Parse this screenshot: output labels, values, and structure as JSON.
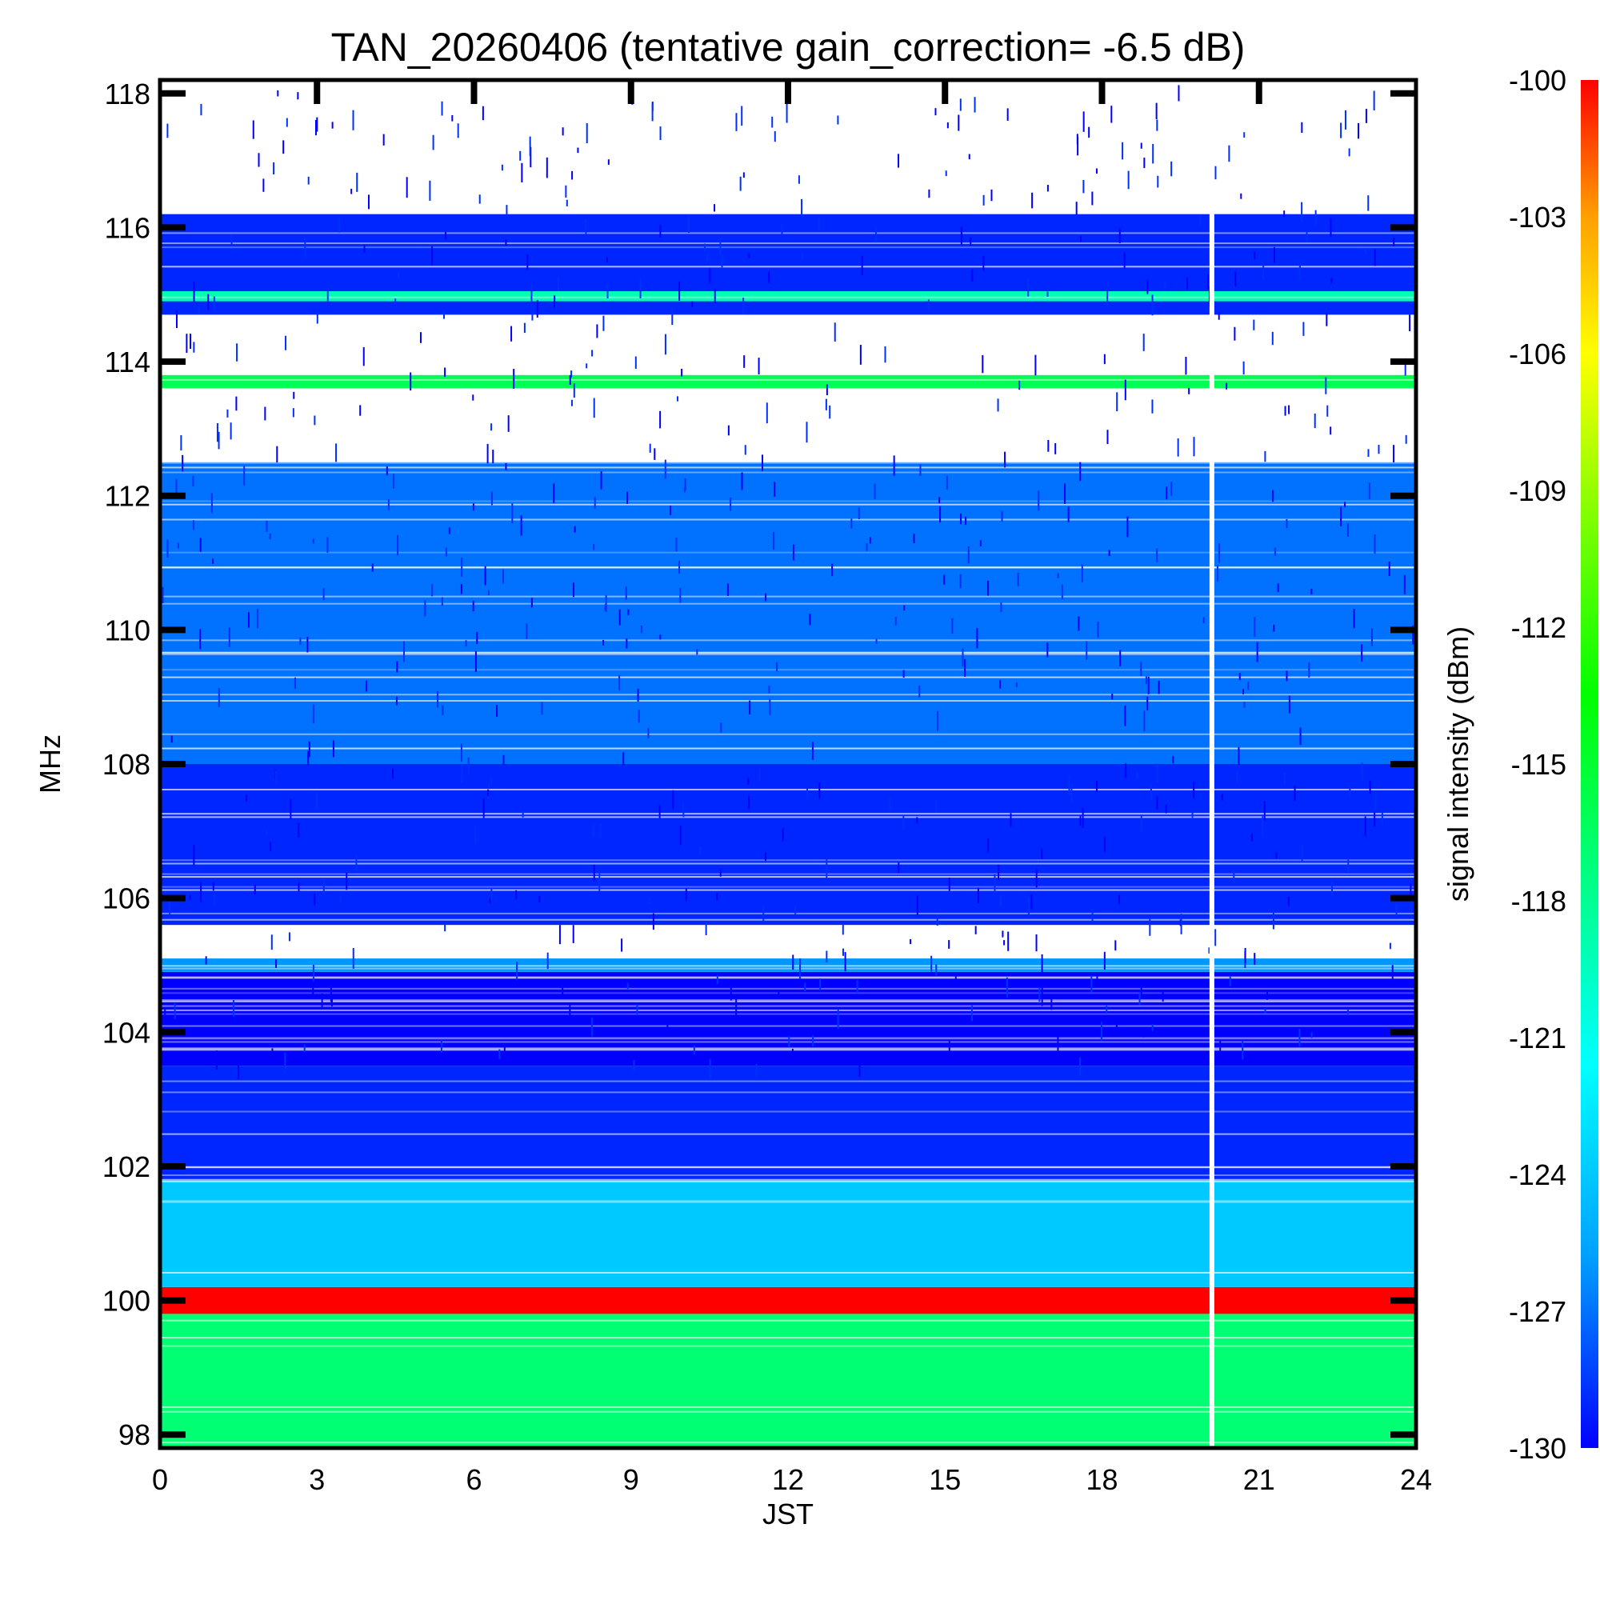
{
  "chart_data": {
    "type": "heatmap",
    "title": "TAN_20260406 (tentative gain_correction= -6.5 dB)",
    "xlabel": "JST",
    "ylabel": "MHz",
    "colorbar_label": "signal intensity (dBm)",
    "xlim": [
      0,
      24
    ],
    "ylim": [
      97.8,
      118.2
    ],
    "x_ticks": [
      "0",
      "3",
      "6",
      "9",
      "12",
      "15",
      "18",
      "21",
      "24"
    ],
    "y_ticks": [
      "98",
      "100",
      "102",
      "104",
      "106",
      "108",
      "110",
      "112",
      "114",
      "116",
      "118"
    ],
    "colorbar_ticks": [
      "-100",
      "-103",
      "-106",
      "-109",
      "-112",
      "-115",
      "-118",
      "-121",
      "-124",
      "-127",
      "-130"
    ],
    "colorbar_range": [
      -130,
      -100
    ],
    "colormap": [
      "#0000ff",
      "#00a0ff",
      "#00ffff",
      "#00ff80",
      "#00ff00",
      "#80ff00",
      "#ffff00",
      "#ffa000",
      "#ff0000"
    ],
    "background_color": "#ffffff",
    "bands": [
      {
        "range_mhz": [
          97.8,
          99.8
        ],
        "level_dbm": -117
      },
      {
        "range_mhz": [
          99.8,
          100.2
        ],
        "level_dbm": -100
      },
      {
        "range_mhz": [
          100.2,
          101.8
        ],
        "level_dbm": -124
      },
      {
        "range_mhz": [
          101.8,
          103.5
        ],
        "level_dbm": -129
      },
      {
        "range_mhz": [
          103.5,
          104.9
        ],
        "level_dbm": -130
      },
      {
        "range_mhz": [
          104.9,
          105.1
        ],
        "level_dbm": -126
      },
      {
        "range_mhz": [
          105.6,
          108.0
        ],
        "level_dbm": -129
      },
      {
        "range_mhz": [
          108.0,
          112.5
        ],
        "level_dbm": -127
      },
      {
        "range_mhz": [
          113.6,
          113.8
        ],
        "level_dbm": -116
      },
      {
        "range_mhz": [
          114.7,
          116.2
        ],
        "level_dbm": -129
      },
      {
        "range_mhz": [
          114.9,
          115.05
        ],
        "level_dbm": -119
      }
    ],
    "data_gaps": [
      {
        "jst": 20.1,
        "note": "no data"
      }
    ]
  }
}
